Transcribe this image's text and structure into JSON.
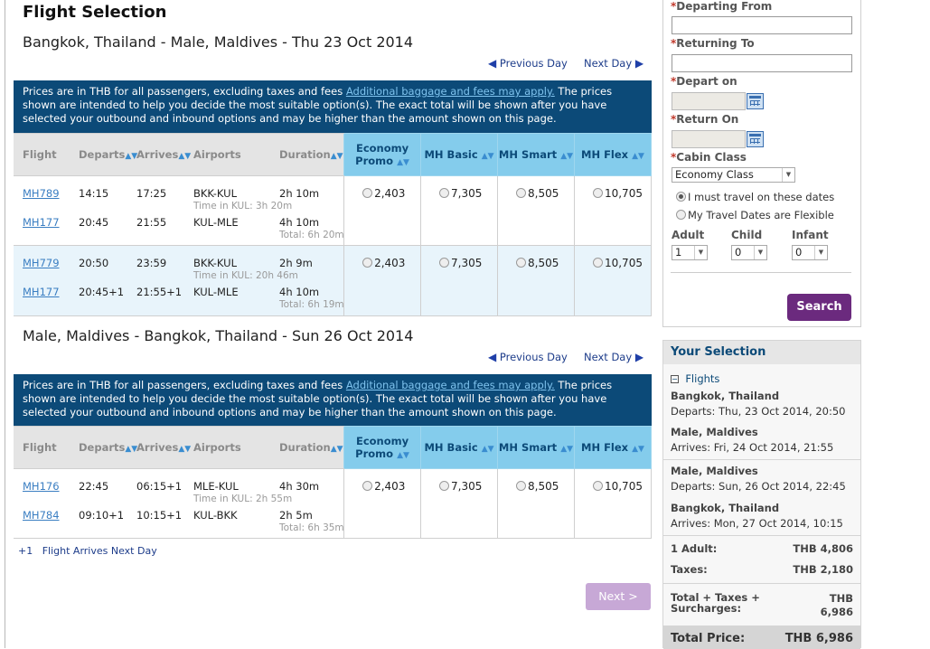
{
  "page": {
    "title": "Flight Selection"
  },
  "nav": {
    "prev_day": "Previous Day",
    "next_day": "Next Day"
  },
  "notice": {
    "text1": "Prices are in THB for all passengers, excluding taxes and fees ",
    "link": "Additional baggage and fees may apply.",
    "text2": " The prices shown are intended to help you decide the most suitable option(s). The exact total will be shown after you have selected your outbound and inbound options and may be higher than the amount shown on this page."
  },
  "table_headers": {
    "flight": "Flight",
    "departs": "Departs",
    "arrives": "Arrives",
    "airports": "Airports",
    "duration": "Duration",
    "economy_promo_1": "Economy",
    "economy_promo_2": "Promo",
    "mh_basic": "MH Basic",
    "mh_smart": "MH Smart",
    "mh_flex": "MH Flex"
  },
  "outbound": {
    "route": "Bangkok, Thailand - Male, Maldives - Thu 23 Oct 2014",
    "rows": [
      {
        "seg1": {
          "flight": "MH789",
          "departs": "14:15",
          "arrives": "17:25",
          "airports": "BKK-KUL",
          "duration": "2h 10m"
        },
        "transit": "Time in KUL: 3h 20m",
        "seg2": {
          "flight": "MH177",
          "departs": "20:45",
          "arrives": "21:55",
          "airports": "KUL-MLE",
          "duration": "4h 10m"
        },
        "total": "Total: 6h 20m",
        "fares": [
          "2,403",
          "7,305",
          "8,505",
          "10,705"
        ]
      },
      {
        "seg1": {
          "flight": "MH779",
          "departs": "20:50",
          "arrives": "23:59",
          "airports": "BKK-KUL",
          "duration": "2h 9m"
        },
        "transit": "Time in KUL: 20h 46m",
        "seg2": {
          "flight": "MH177",
          "departs": "20:45+1",
          "arrives": "21:55+1",
          "airports": "KUL-MLE",
          "duration": "4h 10m"
        },
        "total": "Total: 6h 19m",
        "fares": [
          "2,403",
          "7,305",
          "8,505",
          "10,705"
        ]
      }
    ]
  },
  "inbound": {
    "route": "Male, Maldives - Bangkok, Thailand - Sun 26 Oct 2014",
    "rows": [
      {
        "seg1": {
          "flight": "MH176",
          "departs": "22:45",
          "arrives": "06:15+1",
          "airports": "MLE-KUL",
          "duration": "4h 30m"
        },
        "transit": "Time in KUL: 2h 55m",
        "seg2": {
          "flight": "MH784",
          "departs": "09:10+1",
          "arrives": "10:15+1",
          "airports": "KUL-BKK",
          "duration": "2h 5m"
        },
        "total": "Total: 6h 35m",
        "fares": [
          "2,403",
          "7,305",
          "8,505",
          "10,705"
        ]
      }
    ]
  },
  "legend": {
    "mark": "+1",
    "text": "Flight Arrives Next Day"
  },
  "next_button": "Next >",
  "search": {
    "required_mark": "*",
    "departing_from": "Departing From",
    "returning_to": "Returning To",
    "depart_on": "Depart on",
    "return_on": "Return On",
    "cabin_class": "Cabin Class",
    "cabin_value": "Economy Class",
    "option_fixed": "I must travel on these dates",
    "option_flexible": "My Travel Dates are Flexible",
    "adult": "Adult",
    "child": "Child",
    "infant": "Infant",
    "adult_value": "1",
    "child_value": "0",
    "infant_value": "0",
    "search_button": "Search"
  },
  "selection": {
    "title": "Your Selection",
    "flights_label": "Flights",
    "out_from": "Bangkok, Thailand",
    "out_departs": "Departs: Thu, 23 Oct 2014, 20:50",
    "out_to": "Male, Maldives",
    "out_arrives": "Arrives:  Fri, 24 Oct 2014, 21:55",
    "in_from": "Male, Maldives",
    "in_departs": "Departs: Sun, 26 Oct 2014, 22:45",
    "in_to": "Bangkok, Thailand",
    "in_arrives": "Arrives:  Mon, 27 Oct 2014, 10:15",
    "adult_label": "1 Adult:",
    "adult_value": "THB 4,806",
    "taxes_label": "Taxes:",
    "taxes_value": "THB 2,180",
    "total_taxes_label_1": "Total + Taxes +",
    "total_taxes_label_2": "Surcharges:",
    "total_taxes_currency": "THB",
    "total_taxes_value": "6,986",
    "total_price_label": "Total Price:",
    "total_price_value": "THB 6,986"
  }
}
